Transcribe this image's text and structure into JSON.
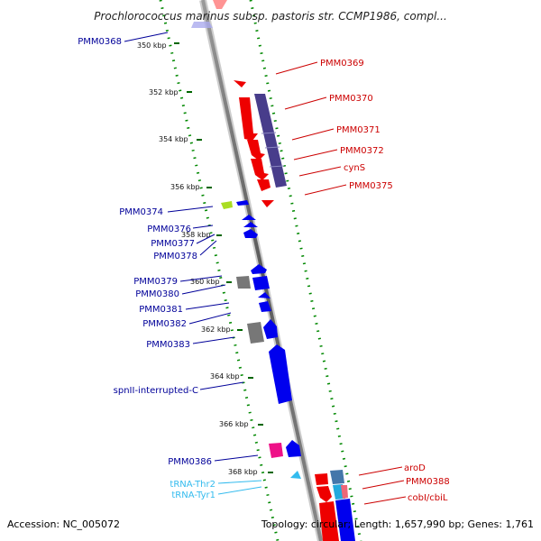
{
  "title": "Prochlorococcus marinus subsp. pastoris str. CCMP1986, compl...",
  "footer": {
    "accession": "Accession: NC_005072",
    "topology": "Topology: circular; Length: 1,657,990 bp; Genes: 1,761"
  },
  "colors": {
    "forward_gene": "#ff0000",
    "reverse_gene": "#0000ff",
    "protein_domain": "#483d8b",
    "trna": "#33bbee",
    "ruler": "#006600",
    "right_label": "#cc0000",
    "left_label": "#000099"
  },
  "ticks": [
    "350 kbp",
    "352 kbp",
    "354 kbp",
    "356 kbp",
    "358 kbp",
    "360 kbp",
    "362 kbp",
    "364 kbp",
    "366 kbp",
    "368 kbp"
  ],
  "right_labels": [
    "PMM0369",
    "PMM0370",
    "PMM0371",
    "PMM0372",
    "cynS",
    "PMM0375",
    "aroD",
    "PMM0388",
    "cobI/cbiL"
  ],
  "left_labels": [
    "PMM0368",
    "PMM0374",
    "PMM0376",
    "PMM0377",
    "PMM0378",
    "PMM0379",
    "PMM0380",
    "PMM0381",
    "PMM0382",
    "PMM0383",
    "spnII-interrupted-C",
    "PMM0386",
    "tRNA-Thr2",
    "tRNA-Tyr1"
  ]
}
